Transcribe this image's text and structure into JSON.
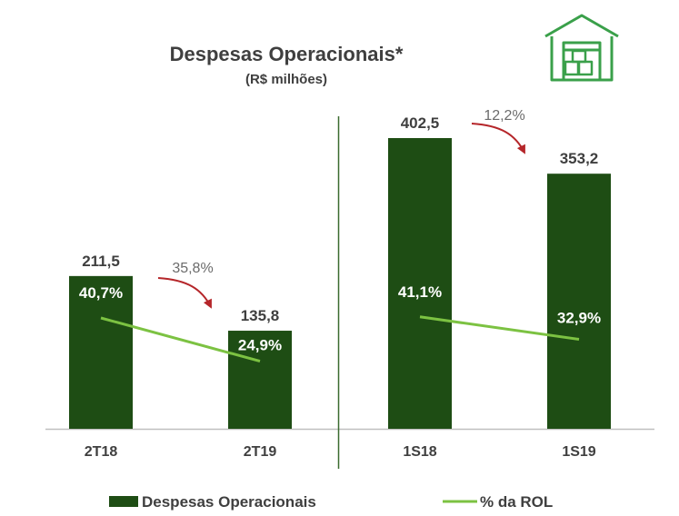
{
  "chart_data": {
    "type": "bar",
    "title": "Despesas Operacionais*",
    "subtitle": "(R$ milhões)",
    "categories": [
      "2T18",
      "2T19",
      "1S18",
      "1S19"
    ],
    "series": [
      {
        "name": "Despesas Operacionais",
        "type": "bar",
        "values": [
          211.5,
          135.8,
          402.5,
          353.2
        ],
        "labels": [
          "211,5",
          "135,8",
          "402,5",
          "353,2"
        ],
        "color": "#1e4d14"
      },
      {
        "name": "% da ROL",
        "type": "line",
        "values": [
          40.7,
          24.9,
          41.1,
          32.9
        ],
        "labels": [
          "40,7%",
          "24,9%",
          "41,1%",
          "32,9%"
        ],
        "color": "#7cc242"
      }
    ],
    "variations": [
      {
        "from": "2T18",
        "to": "2T19",
        "label": "35,8%"
      },
      {
        "from": "1S18",
        "to": "1S19",
        "label": "12,2%"
      }
    ],
    "ylim": [
      0,
      402.5
    ],
    "grid": false,
    "legend_position": "bottom",
    "colors": {
      "bar": "#1e4d14",
      "line": "#7cc242",
      "arrow": "#b5262a",
      "icon": "#3aa04a"
    },
    "icon": "warehouse-icon"
  }
}
